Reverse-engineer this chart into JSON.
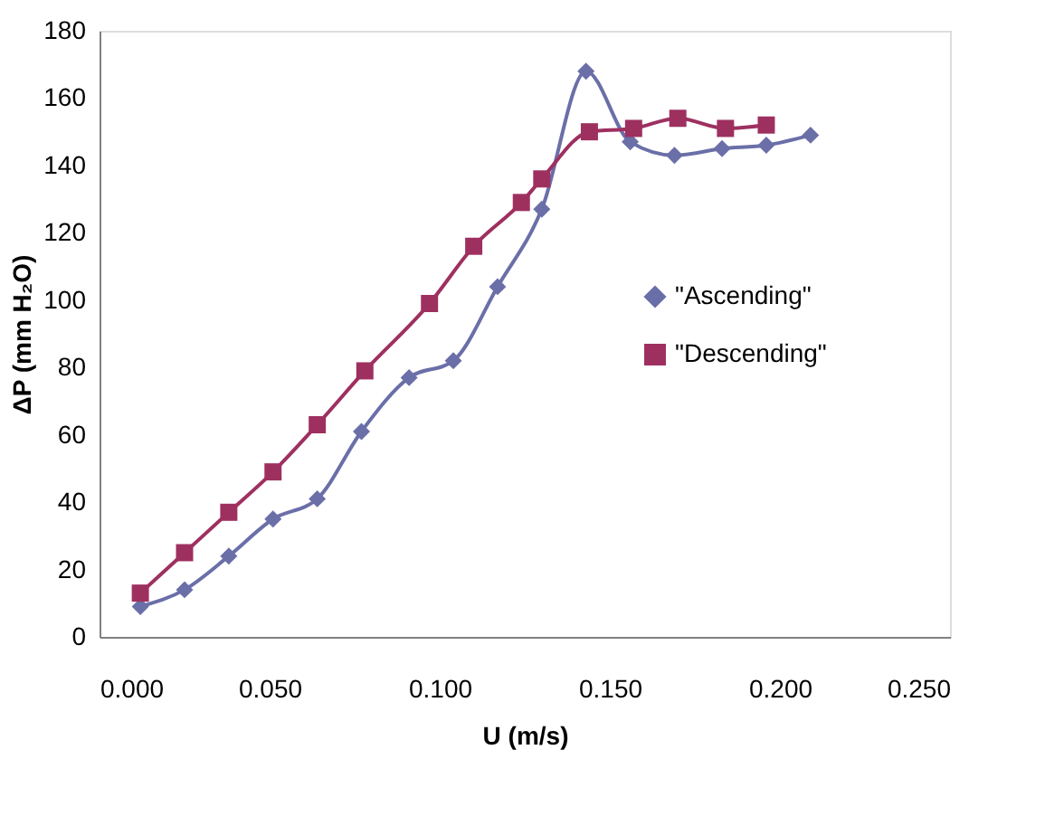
{
  "chart_data": {
    "type": "line",
    "xlabel": "U (m/s)",
    "ylabel": "ΔP (mm H₂O)",
    "xlim": [
      0,
      0.25
    ],
    "xticks": [
      {
        "value": 0,
        "label": "0.000"
      },
      {
        "value": 0.05,
        "label": "0.050"
      },
      {
        "value": 0.1,
        "label": "0.100"
      },
      {
        "value": 0.15,
        "label": "0.150"
      },
      {
        "value": 0.2,
        "label": "0.200"
      },
      {
        "value": 0.25,
        "label": "0.250"
      }
    ],
    "ylim": [
      0,
      180
    ],
    "yticks": [
      0,
      20,
      40,
      60,
      80,
      100,
      120,
      140,
      160,
      180
    ],
    "grid": false,
    "legend": "right",
    "series": [
      {
        "name": "\"Ascending\"",
        "color": "#6a6fa8",
        "marker": "diamond",
        "x": [
          0.012,
          0.025,
          0.038,
          0.051,
          0.064,
          0.077,
          0.091,
          0.104,
          0.117,
          0.13,
          0.143,
          0.156,
          0.169,
          0.183,
          0.196,
          0.209
        ],
        "values": [
          9,
          14,
          24,
          35,
          41,
          61,
          77,
          82,
          104,
          127,
          168,
          147,
          143,
          145,
          146,
          149
        ]
      },
      {
        "name": "\"Descending\"",
        "color": "#9e3060",
        "marker": "square",
        "x": [
          0.012,
          0.025,
          0.038,
          0.051,
          0.064,
          0.078,
          0.097,
          0.11,
          0.124,
          0.13,
          0.144,
          0.157,
          0.17,
          0.184,
          0.196
        ],
        "values": [
          13,
          25,
          37,
          49,
          63,
          79,
          99,
          116,
          129,
          136,
          150,
          151,
          154,
          151,
          152
        ]
      }
    ]
  }
}
